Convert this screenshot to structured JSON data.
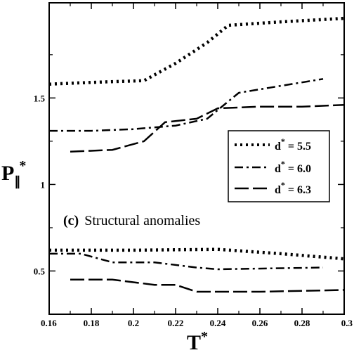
{
  "chart_data": {
    "type": "line",
    "xlabel": "T*",
    "ylabel": "P∥*",
    "xlim": [
      0.16,
      0.3
    ],
    "ylim": [
      0.25,
      2.05
    ],
    "x_ticks": [
      0.16,
      0.18,
      0.2,
      0.22,
      0.24,
      0.26,
      0.28,
      0.3
    ],
    "x_tick_labels": [
      "0.16",
      "0.18",
      "0.2",
      "0.22",
      "0.24",
      "0.26",
      "0.28",
      "0.3"
    ],
    "y_ticks": [
      0.5,
      1,
      1.5
    ],
    "y_tick_labels": [
      "0.5",
      "1",
      "1.5"
    ],
    "annotation": {
      "bold": "(c)",
      "text": "Structural anomalies"
    },
    "legend_position": "right",
    "series": [
      {
        "name": "d* = 5.5",
        "d_value": "5.5",
        "style": "dotted",
        "points": [
          [
            0.16,
            1.58
          ],
          [
            0.18,
            1.59
          ],
          [
            0.205,
            1.6
          ],
          [
            0.22,
            1.7
          ],
          [
            0.235,
            1.82
          ],
          [
            0.245,
            1.92
          ],
          [
            0.27,
            1.94
          ],
          [
            0.3,
            1.96
          ]
        ]
      },
      {
        "name": "d* = 6.0",
        "d_value": "6.0",
        "style": "dash-dot",
        "points": [
          [
            0.16,
            1.31
          ],
          [
            0.18,
            1.31
          ],
          [
            0.2,
            1.32
          ],
          [
            0.22,
            1.34
          ],
          [
            0.235,
            1.38
          ],
          [
            0.25,
            1.53
          ],
          [
            0.27,
            1.57
          ],
          [
            0.29,
            1.61
          ]
        ]
      },
      {
        "name": "d* = 6.3",
        "d_value": "6.3",
        "style": "long-dash",
        "points": [
          [
            0.17,
            1.19
          ],
          [
            0.19,
            1.2
          ],
          [
            0.205,
            1.25
          ],
          [
            0.215,
            1.36
          ],
          [
            0.23,
            1.38
          ],
          [
            0.24,
            1.44
          ],
          [
            0.26,
            1.45
          ],
          [
            0.28,
            1.45
          ],
          [
            0.3,
            1.46
          ]
        ]
      },
      {
        "name": "d* = 5.5 (lower branch)",
        "style": "dotted",
        "points": [
          [
            0.16,
            0.62
          ],
          [
            0.2,
            0.62
          ],
          [
            0.24,
            0.625
          ],
          [
            0.27,
            0.6
          ],
          [
            0.3,
            0.57
          ]
        ]
      },
      {
        "name": "d* = 6.0 (lower branch)",
        "style": "dash-dot",
        "points": [
          [
            0.16,
            0.6
          ],
          [
            0.175,
            0.6
          ],
          [
            0.19,
            0.55
          ],
          [
            0.21,
            0.55
          ],
          [
            0.23,
            0.52
          ],
          [
            0.24,
            0.51
          ],
          [
            0.29,
            0.52
          ]
        ]
      },
      {
        "name": "d* = 6.3 (lower branch)",
        "style": "long-dash",
        "points": [
          [
            0.17,
            0.45
          ],
          [
            0.19,
            0.45
          ],
          [
            0.21,
            0.42
          ],
          [
            0.22,
            0.42
          ],
          [
            0.23,
            0.38
          ],
          [
            0.26,
            0.38
          ],
          [
            0.3,
            0.39
          ]
        ]
      }
    ]
  }
}
